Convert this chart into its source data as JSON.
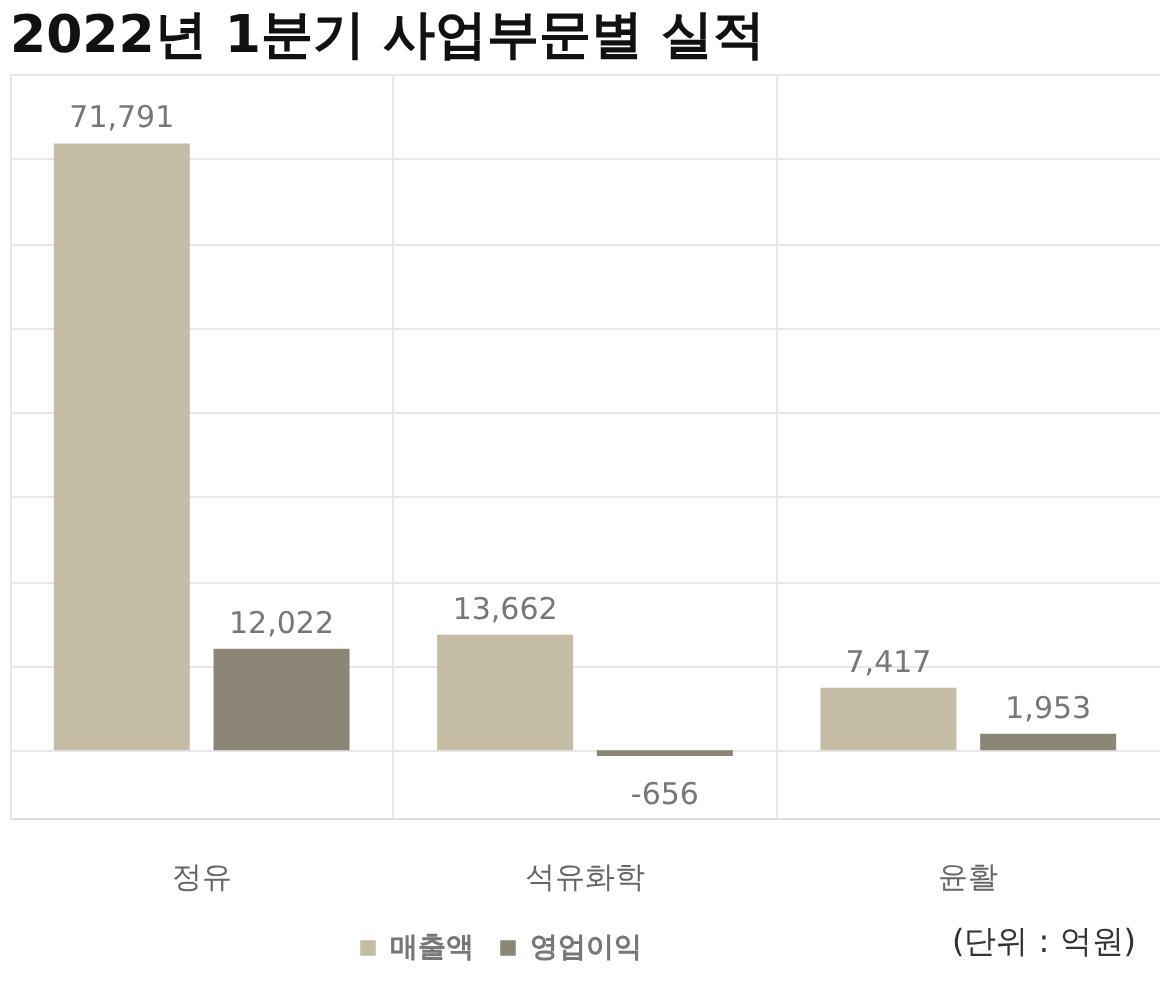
{
  "chart_data": {
    "type": "bar",
    "title": "2022년 1분기 사업부문별 실적",
    "categories": [
      "정유",
      "석유화학",
      "윤활"
    ],
    "series": [
      {
        "name": "매출액",
        "color": "#c4bca4",
        "values": [
          71791,
          13662,
          7417
        ],
        "value_labels": [
          "71,791",
          "13,662",
          "7,417"
        ]
      },
      {
        "name": "영업이익",
        "color": "#8c8676",
        "values": [
          12022,
          -656,
          1953
        ],
        "value_labels": [
          "12,022",
          "-656",
          "1,953"
        ]
      }
    ],
    "ylim": [
      -8000,
      80000
    ],
    "yticks": [
      {
        "value": 0,
        "label": null
      },
      {
        "value": 10000,
        "label": null
      },
      {
        "value": 20000,
        "label": null
      },
      {
        "value": 30000,
        "label": null
      },
      {
        "value": 40000,
        "label": null
      },
      {
        "value": 50000,
        "label": null
      },
      {
        "value": 60000,
        "label": null
      },
      {
        "value": 70000,
        "label": null
      },
      {
        "value": 80000,
        "label": null
      }
    ],
    "tick_labels": "x",
    "grid": true,
    "legend": "bottom",
    "annotations": [
      "(단위 : 억원)"
    ]
  }
}
